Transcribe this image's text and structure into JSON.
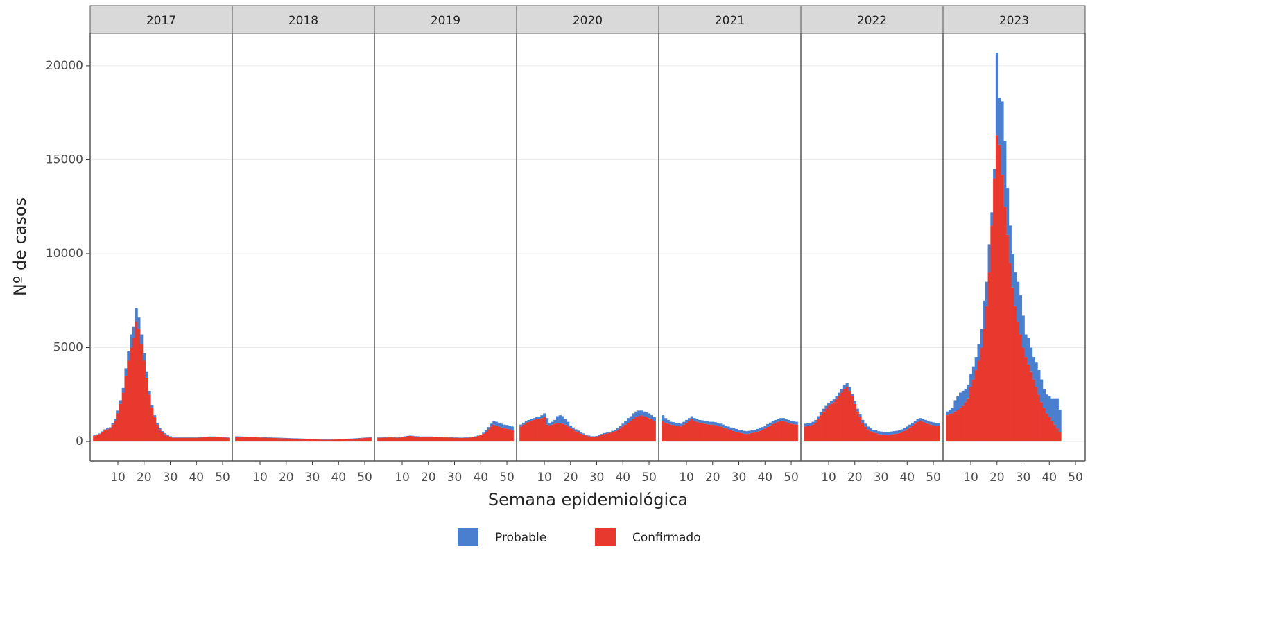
{
  "chart_data": {
    "type": "bar",
    "stacked": true,
    "ylabel": "Nº de casos",
    "xlabel": "Semana epidemiológica",
    "ylim": [
      -1030,
      21730
    ],
    "yticks": [
      0,
      5000,
      10000,
      15000,
      20000
    ],
    "xlim": [
      -0.6,
      53.7
    ],
    "xticks": [
      10,
      20,
      30,
      40,
      50
    ],
    "grid": true,
    "series": [
      {
        "name": "Probable",
        "color": "#4a7fd0"
      },
      {
        "name": "Confirmado",
        "color": "#e8392f"
      }
    ],
    "panels": [
      {
        "title": "2017",
        "x": [
          1,
          2,
          3,
          4,
          5,
          6,
          7,
          8,
          9,
          10,
          11,
          12,
          13,
          14,
          15,
          16,
          17,
          18,
          19,
          20,
          21,
          22,
          23,
          24,
          25,
          26,
          27,
          28,
          29,
          30,
          31,
          32,
          33,
          34,
          35,
          36,
          37,
          38,
          39,
          40,
          41,
          42,
          43,
          44,
          45,
          46,
          47,
          48,
          49,
          50,
          51,
          52
        ],
        "values": [
          [
            30,
            30,
            30,
            40,
            50,
            50,
            60,
            80,
            100,
            150,
            200,
            250,
            400,
            500,
            700,
            600,
            700,
            600,
            500,
            400,
            300,
            200,
            150,
            100,
            80,
            60,
            50,
            40,
            30,
            30,
            20,
            20,
            20,
            20,
            20,
            20,
            20,
            20,
            20,
            20,
            20,
            20,
            20,
            20,
            20,
            20,
            20,
            20,
            20,
            20,
            20,
            20
          ],
          [
            300,
            350,
            400,
            500,
            600,
            650,
            700,
            900,
            1100,
            1500,
            2000,
            2600,
            3500,
            4300,
            5000,
            5500,
            6400,
            6000,
            5200,
            4300,
            3400,
            2500,
            1800,
            1300,
            900,
            650,
            500,
            400,
            300,
            250,
            200,
            200,
            200,
            200,
            200,
            200,
            200,
            200,
            200,
            200,
            210,
            220,
            230,
            240,
            250,
            250,
            250,
            240,
            230,
            220,
            210,
            200
          ]
        ]
      },
      {
        "title": "2018",
        "x": [
          1,
          2,
          3,
          4,
          5,
          6,
          7,
          8,
          9,
          10,
          11,
          12,
          13,
          14,
          15,
          16,
          17,
          18,
          19,
          20,
          21,
          22,
          23,
          24,
          25,
          26,
          27,
          28,
          29,
          30,
          31,
          32,
          33,
          34,
          35,
          36,
          37,
          38,
          39,
          40,
          41,
          42,
          43,
          44,
          45,
          46,
          47,
          48,
          49,
          50,
          51,
          52
        ],
        "values": [
          [
            20,
            20,
            20,
            20,
            20,
            20,
            20,
            20,
            20,
            20,
            20,
            20,
            20,
            20,
            20,
            20,
            20,
            20,
            20,
            20,
            20,
            20,
            20,
            20,
            20,
            20,
            20,
            20,
            20,
            20,
            20,
            20,
            20,
            20,
            20,
            20,
            20,
            20,
            20,
            20,
            20,
            20,
            20,
            20,
            20,
            20,
            20,
            20,
            20,
            20,
            20,
            20
          ],
          [
            260,
            255,
            250,
            245,
            240,
            235,
            230,
            225,
            220,
            215,
            210,
            205,
            200,
            200,
            195,
            190,
            185,
            180,
            175,
            170,
            165,
            160,
            155,
            150,
            145,
            140,
            135,
            130,
            125,
            120,
            115,
            110,
            105,
            100,
            100,
            100,
            100,
            105,
            110,
            115,
            120,
            125,
            130,
            135,
            140,
            150,
            160,
            170,
            180,
            190,
            200,
            210
          ]
        ]
      },
      {
        "title": "2019",
        "x": [
          1,
          2,
          3,
          4,
          5,
          6,
          7,
          8,
          9,
          10,
          11,
          12,
          13,
          14,
          15,
          16,
          17,
          18,
          19,
          20,
          21,
          22,
          23,
          24,
          25,
          26,
          27,
          28,
          29,
          30,
          31,
          32,
          33,
          34,
          35,
          36,
          37,
          38,
          39,
          40,
          41,
          42,
          43,
          44,
          45,
          46,
          47,
          48,
          49,
          50,
          51,
          52
        ],
        "values": [
          [
            20,
            20,
            20,
            20,
            20,
            20,
            20,
            20,
            20,
            20,
            20,
            20,
            20,
            20,
            20,
            20,
            20,
            20,
            20,
            20,
            20,
            20,
            20,
            20,
            20,
            20,
            20,
            20,
            20,
            20,
            20,
            20,
            20,
            20,
            20,
            20,
            20,
            20,
            20,
            20,
            50,
            80,
            120,
            150,
            180,
            200,
            200,
            200,
            200,
            200,
            200,
            200
          ],
          [
            200,
            200,
            210,
            210,
            220,
            220,
            210,
            200,
            210,
            230,
            260,
            280,
            300,
            290,
            270,
            260,
            250,
            250,
            250,
            250,
            250,
            240,
            240,
            230,
            230,
            220,
            220,
            210,
            210,
            200,
            200,
            190,
            190,
            200,
            200,
            210,
            230,
            260,
            300,
            350,
            420,
            520,
            650,
            800,
            900,
            850,
            800,
            750,
            700,
            680,
            650,
            600
          ]
        ]
      },
      {
        "title": "2020",
        "x": [
          1,
          2,
          3,
          4,
          5,
          6,
          7,
          8,
          9,
          10,
          11,
          12,
          13,
          14,
          15,
          16,
          17,
          18,
          19,
          20,
          21,
          22,
          23,
          24,
          25,
          26,
          27,
          28,
          29,
          30,
          31,
          32,
          33,
          34,
          35,
          36,
          37,
          38,
          39,
          40,
          41,
          42,
          43,
          44,
          45,
          46,
          47,
          48,
          49,
          50,
          51,
          52
        ],
        "values": [
          [
            100,
            100,
            100,
            100,
            100,
            100,
            100,
            100,
            150,
            200,
            350,
            150,
            150,
            200,
            350,
            400,
            400,
            300,
            250,
            150,
            100,
            100,
            80,
            60,
            50,
            40,
            40,
            30,
            30,
            30,
            40,
            50,
            50,
            50,
            60,
            70,
            80,
            100,
            120,
            150,
            200,
            250,
            250,
            300,
            300,
            300,
            250,
            250,
            250,
            250,
            200,
            200
          ],
          [
            800,
            900,
            1000,
            1050,
            1100,
            1150,
            1200,
            1200,
            1250,
            1300,
            900,
            850,
            900,
            950,
            1000,
            1000,
            950,
            900,
            800,
            700,
            650,
            550,
            500,
            420,
            380,
            320,
            280,
            250,
            250,
            270,
            300,
            350,
            400,
            430,
            460,
            500,
            550,
            600,
            700,
            800,
            900,
            1000,
            1100,
            1200,
            1300,
            1350,
            1400,
            1350,
            1300,
            1250,
            1200,
            1100
          ]
        ]
      },
      {
        "title": "2021",
        "x": [
          1,
          2,
          3,
          4,
          5,
          6,
          7,
          8,
          9,
          10,
          11,
          12,
          13,
          14,
          15,
          16,
          17,
          18,
          19,
          20,
          21,
          22,
          23,
          24,
          25,
          26,
          27,
          28,
          29,
          30,
          31,
          32,
          33,
          34,
          35,
          36,
          37,
          38,
          39,
          40,
          41,
          42,
          43,
          44,
          45,
          46,
          47,
          48,
          49,
          50,
          51,
          52
        ],
        "values": [
          [
            300,
            250,
            200,
            150,
            150,
            150,
            150,
            150,
            150,
            150,
            150,
            150,
            150,
            150,
            150,
            150,
            150,
            150,
            150,
            150,
            150,
            150,
            150,
            150,
            150,
            150,
            150,
            150,
            150,
            150,
            150,
            150,
            150,
            150,
            150,
            150,
            150,
            150,
            150,
            150,
            150,
            150,
            150,
            150,
            150,
            150,
            150,
            150,
            150,
            150,
            150,
            150
          ],
          [
            1100,
            1000,
            950,
            900,
            880,
            850,
            820,
            800,
            900,
            1000,
            1100,
            1200,
            1100,
            1050,
            1000,
            980,
            950,
            920,
            900,
            900,
            880,
            850,
            800,
            750,
            700,
            650,
            600,
            560,
            520,
            480,
            450,
            420,
            400,
            420,
            450,
            480,
            520,
            560,
            620,
            700,
            780,
            860,
            940,
            1000,
            1060,
            1100,
            1100,
            1050,
            1000,
            950,
            920,
            900
          ]
        ]
      },
      {
        "title": "2022",
        "x": [
          1,
          2,
          3,
          4,
          5,
          6,
          7,
          8,
          9,
          10,
          11,
          12,
          13,
          14,
          15,
          16,
          17,
          18,
          19,
          20,
          21,
          22,
          23,
          24,
          25,
          26,
          27,
          28,
          29,
          30,
          31,
          32,
          33,
          34,
          35,
          36,
          37,
          38,
          39,
          40,
          41,
          42,
          43,
          44,
          45,
          46,
          47,
          48,
          49,
          50,
          51,
          52
        ],
        "values": [
          [
            150,
            150,
            150,
            150,
            150,
            150,
            150,
            150,
            150,
            150,
            150,
            150,
            150,
            200,
            200,
            200,
            200,
            200,
            150,
            150,
            150,
            150,
            150,
            150,
            150,
            150,
            150,
            150,
            150,
            150,
            150,
            150,
            150,
            150,
            150,
            150,
            150,
            150,
            150,
            150,
            150,
            150,
            150,
            150,
            150,
            150,
            150,
            150,
            150,
            150,
            150,
            150
          ],
          [
            800,
            820,
            850,
            900,
            1000,
            1200,
            1400,
            1600,
            1750,
            1900,
            2000,
            2100,
            2250,
            2400,
            2600,
            2800,
            2900,
            2700,
            2400,
            2000,
            1600,
            1300,
            1000,
            800,
            650,
            550,
            480,
            450,
            400,
            380,
            350,
            350,
            360,
            380,
            400,
            420,
            450,
            500,
            560,
            650,
            750,
            850,
            950,
            1050,
            1100,
            1050,
            1000,
            950,
            900,
            870,
            850,
            850
          ]
        ]
      },
      {
        "title": "2023",
        "x": [
          1,
          2,
          3,
          4,
          5,
          6,
          7,
          8,
          9,
          10,
          11,
          12,
          13,
          14,
          15,
          16,
          17,
          18,
          19,
          20,
          21,
          22,
          23,
          24,
          25,
          26,
          27,
          28,
          29,
          30,
          31,
          32,
          33,
          34,
          35,
          36,
          37,
          38,
          39,
          40,
          41,
          42,
          43,
          44
        ],
        "values": [
          [
            200,
            250,
            300,
            600,
            700,
            800,
            800,
            700,
            700,
            700,
            700,
            700,
            900,
            1000,
            1500,
            1300,
            1500,
            700,
            500,
            4400,
            2500,
            3900,
            3500,
            2500,
            2000,
            1800,
            1800,
            2100,
            2100,
            1700,
            1200,
            1400,
            1300,
            1200,
            1300,
            1300,
            1200,
            1000,
            1000,
            1100,
            1200,
            1400,
            1600,
            1200
          ],
          [
            1400,
            1450,
            1500,
            1600,
            1700,
            1800,
            1900,
            2100,
            2300,
            2900,
            3300,
            3800,
            4300,
            5000,
            6000,
            7200,
            9000,
            11500,
            14000,
            16300,
            15800,
            14200,
            12500,
            11000,
            9500,
            8200,
            7200,
            6400,
            5700,
            5000,
            4500,
            4100,
            3700,
            3300,
            2900,
            2500,
            2100,
            1800,
            1500,
            1300,
            1100,
            900,
            700,
            500
          ]
        ]
      }
    ]
  }
}
